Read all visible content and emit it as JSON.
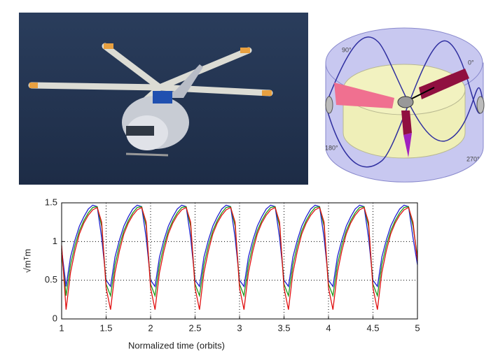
{
  "diagram": {
    "labels": [
      "90°",
      "0°",
      "180°",
      "270°"
    ]
  },
  "chart_data": {
    "type": "line",
    "xlabel": "Normalized time (orbits)",
    "ylabel": "√mᵀm",
    "x": [
      1,
      1.05,
      1.1,
      1.15,
      1.2,
      1.25,
      1.3,
      1.35,
      1.4,
      1.45,
      1.5,
      1.55,
      1.6,
      1.65,
      1.7,
      1.75,
      1.8,
      1.85,
      1.9,
      1.95,
      2,
      2.05,
      2.1,
      2.15,
      2.2,
      2.25,
      2.3,
      2.35,
      2.4,
      2.45,
      2.5,
      2.55,
      2.6,
      2.65,
      2.7,
      2.75,
      2.8,
      2.85,
      2.9,
      2.95,
      3,
      3.05,
      3.1,
      3.15,
      3.2,
      3.25,
      3.3,
      3.35,
      3.4,
      3.45,
      3.5,
      3.55,
      3.6,
      3.65,
      3.7,
      3.75,
      3.8,
      3.85,
      3.9,
      3.95,
      4,
      4.05,
      4.1,
      4.15,
      4.2,
      4.25,
      4.3,
      4.35,
      4.4,
      4.45,
      4.5,
      4.55,
      4.6,
      4.65,
      4.7,
      4.75,
      4.8,
      4.85,
      4.9,
      4.95,
      5
    ],
    "series": [
      {
        "color": "#1f1fd0",
        "values": [
          0.9,
          0.42,
          0.8,
          1.02,
          1.2,
          1.32,
          1.42,
          1.47,
          1.45,
          1.05,
          0.5,
          0.42,
          0.8,
          1.02,
          1.2,
          1.32,
          1.42,
          1.47,
          1.45,
          1.05,
          0.5,
          0.42,
          0.8,
          1.02,
          1.2,
          1.32,
          1.42,
          1.47,
          1.45,
          1.05,
          0.5,
          0.42,
          0.8,
          1.02,
          1.2,
          1.32,
          1.42,
          1.47,
          1.45,
          1.05,
          0.5,
          0.42,
          0.8,
          1.02,
          1.2,
          1.32,
          1.42,
          1.47,
          1.45,
          1.05,
          0.5,
          0.42,
          0.8,
          1.02,
          1.2,
          1.32,
          1.42,
          1.47,
          1.45,
          1.05,
          0.5,
          0.42,
          0.8,
          1.02,
          1.2,
          1.32,
          1.42,
          1.47,
          1.45,
          1.05,
          0.5,
          0.42,
          0.8,
          1.02,
          1.2,
          1.32,
          1.42,
          1.47,
          1.45,
          1.05,
          0.7
        ]
      },
      {
        "color": "#1a9a1a",
        "values": [
          0.85,
          0.3,
          0.7,
          0.95,
          1.14,
          1.27,
          1.37,
          1.44,
          1.45,
          1.2,
          0.45,
          0.3,
          0.7,
          0.95,
          1.14,
          1.27,
          1.37,
          1.44,
          1.45,
          1.2,
          0.45,
          0.3,
          0.7,
          0.95,
          1.14,
          1.27,
          1.37,
          1.44,
          1.45,
          1.2,
          0.45,
          0.3,
          0.7,
          0.95,
          1.14,
          1.27,
          1.37,
          1.44,
          1.45,
          1.2,
          0.45,
          0.3,
          0.7,
          0.95,
          1.14,
          1.27,
          1.37,
          1.44,
          1.45,
          1.2,
          0.45,
          0.3,
          0.7,
          0.95,
          1.14,
          1.27,
          1.37,
          1.44,
          1.45,
          1.2,
          0.45,
          0.3,
          0.7,
          0.95,
          1.14,
          1.27,
          1.37,
          1.44,
          1.45,
          1.2,
          0.45,
          0.3,
          0.7,
          0.95,
          1.14,
          1.27,
          1.37,
          1.44,
          1.45,
          1.2,
          0.8
        ]
      },
      {
        "color": "#e01010",
        "values": [
          0.95,
          0.12,
          0.6,
          0.88,
          1.1,
          1.24,
          1.34,
          1.41,
          1.44,
          1.25,
          0.4,
          0.12,
          0.6,
          0.88,
          1.1,
          1.24,
          1.34,
          1.41,
          1.44,
          1.25,
          0.4,
          0.12,
          0.6,
          0.88,
          1.1,
          1.24,
          1.34,
          1.41,
          1.44,
          1.25,
          0.4,
          0.12,
          0.6,
          0.88,
          1.1,
          1.24,
          1.34,
          1.41,
          1.44,
          1.25,
          0.4,
          0.12,
          0.6,
          0.88,
          1.1,
          1.24,
          1.34,
          1.41,
          1.44,
          1.25,
          0.4,
          0.12,
          0.6,
          0.88,
          1.1,
          1.24,
          1.34,
          1.41,
          1.44,
          1.25,
          0.4,
          0.12,
          0.6,
          0.88,
          1.1,
          1.24,
          1.34,
          1.41,
          1.44,
          1.25,
          0.4,
          0.12,
          0.6,
          0.88,
          1.1,
          1.24,
          1.34,
          1.41,
          1.44,
          1.25,
          0.75
        ]
      }
    ],
    "xlim": [
      1,
      5
    ],
    "ylim": [
      0,
      1.5
    ],
    "xticks": [
      1,
      1.5,
      2,
      2.5,
      3,
      3.5,
      4,
      4.5,
      5
    ],
    "yticks": [
      0,
      0.5,
      1,
      1.5
    ],
    "grid": true
  }
}
